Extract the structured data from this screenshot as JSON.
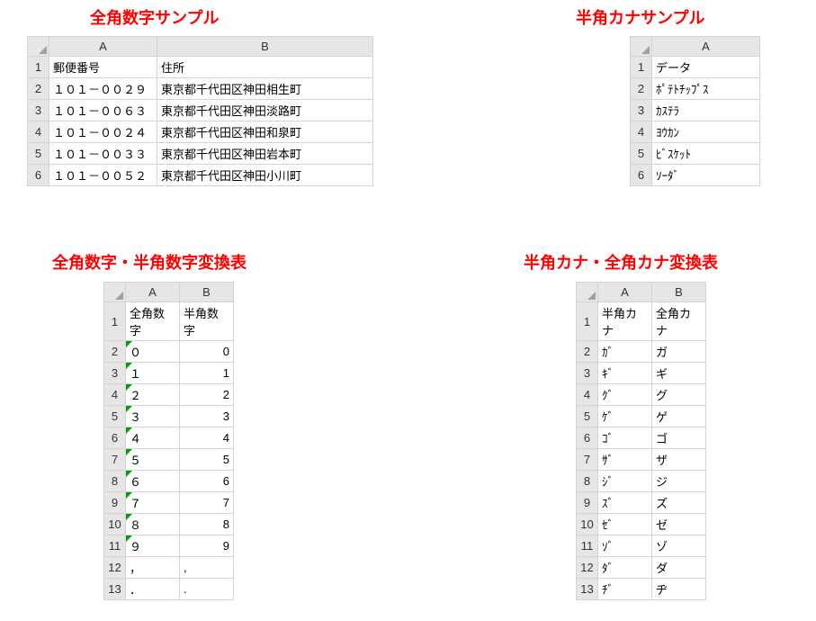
{
  "titles": {
    "t1": "全角数字サンプル",
    "t2": "半角カナサンプル",
    "t3": "全角数字・半角数字変換表",
    "t4": "半角カナ・全角カナ変換表"
  },
  "table1": {
    "colA_width": 120,
    "colB_width": 240,
    "cols": [
      "A",
      "B"
    ],
    "rows": [
      {
        "n": "1",
        "a": "郵便番号",
        "b": "住所"
      },
      {
        "n": "2",
        "a": "１０１－００２９",
        "b": "東京都千代田区神田相生町"
      },
      {
        "n": "3",
        "a": "１０１－００６３",
        "b": "東京都千代田区神田淡路町"
      },
      {
        "n": "4",
        "a": "１０１－００２４",
        "b": "東京都千代田区神田和泉町"
      },
      {
        "n": "5",
        "a": "１０１－００３３",
        "b": "東京都千代田区神田岩本町"
      },
      {
        "n": "6",
        "a": "１０１－００５２",
        "b": "東京都千代田区神田小川町"
      }
    ]
  },
  "table2": {
    "colA_width": 120,
    "cols": [
      "A"
    ],
    "rows": [
      {
        "n": "1",
        "a": "データ"
      },
      {
        "n": "2",
        "a": "ﾎﾟﾃﾄﾁｯﾌﾟｽ"
      },
      {
        "n": "3",
        "a": "ｶｽﾃﾗ"
      },
      {
        "n": "4",
        "a": "ﾖｳｶﾝ"
      },
      {
        "n": "5",
        "a": "ﾋﾞｽｹｯﾄ"
      },
      {
        "n": "6",
        "a": "ｿｰﾀﾞ"
      }
    ]
  },
  "table3": {
    "colA_width": 60,
    "colB_width": 60,
    "cols": [
      "A",
      "B"
    ],
    "rows": [
      {
        "n": "1",
        "a": "全角数字",
        "b": "半角数字",
        "mark": false
      },
      {
        "n": "2",
        "a": "０",
        "b": "0",
        "mark": true
      },
      {
        "n": "3",
        "a": "１",
        "b": "1",
        "mark": true
      },
      {
        "n": "4",
        "a": "２",
        "b": "2",
        "mark": true
      },
      {
        "n": "5",
        "a": "３",
        "b": "3",
        "mark": true
      },
      {
        "n": "6",
        "a": "４",
        "b": "4",
        "mark": true
      },
      {
        "n": "7",
        "a": "５",
        "b": "5",
        "mark": true
      },
      {
        "n": "8",
        "a": "６",
        "b": "6",
        "mark": true
      },
      {
        "n": "9",
        "a": "７",
        "b": "7",
        "mark": true
      },
      {
        "n": "10",
        "a": "８",
        "b": "8",
        "mark": true
      },
      {
        "n": "11",
        "a": "９",
        "b": "9",
        "mark": true
      },
      {
        "n": "12",
        "a": "，",
        "b": ",",
        "mark": false
      },
      {
        "n": "13",
        "a": "．",
        "b": ".",
        "mark": false
      }
    ]
  },
  "table4": {
    "colA_width": 60,
    "colB_width": 60,
    "cols": [
      "A",
      "B"
    ],
    "rows": [
      {
        "n": "1",
        "a": "半角カナ",
        "b": "全角カナ"
      },
      {
        "n": "2",
        "a": "ｶﾞ",
        "b": "ガ"
      },
      {
        "n": "3",
        "a": "ｷﾞ",
        "b": "ギ"
      },
      {
        "n": "4",
        "a": "ｸﾞ",
        "b": "グ"
      },
      {
        "n": "5",
        "a": "ｹﾞ",
        "b": "ゲ"
      },
      {
        "n": "6",
        "a": "ｺﾞ",
        "b": "ゴ"
      },
      {
        "n": "7",
        "a": "ｻﾞ",
        "b": "ザ"
      },
      {
        "n": "8",
        "a": "ｼﾞ",
        "b": "ジ"
      },
      {
        "n": "9",
        "a": "ｽﾞ",
        "b": "ズ"
      },
      {
        "n": "10",
        "a": "ｾﾞ",
        "b": "ゼ"
      },
      {
        "n": "11",
        "a": "ｿﾞ",
        "b": "ゾ"
      },
      {
        "n": "12",
        "a": "ﾀﾞ",
        "b": "ダ"
      },
      {
        "n": "13",
        "a": "ﾁﾞ",
        "b": "ヂ"
      }
    ]
  }
}
